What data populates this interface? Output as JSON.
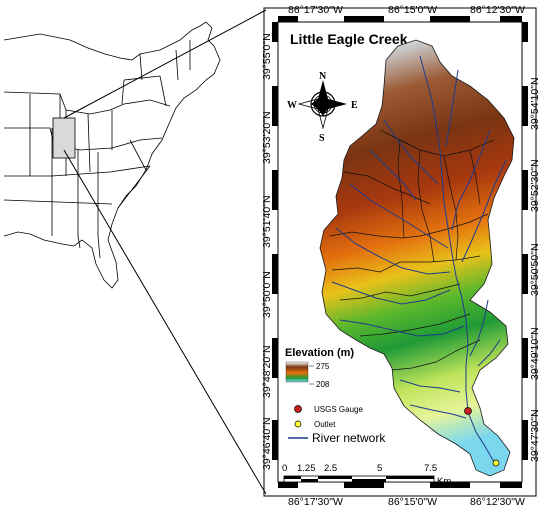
{
  "map": {
    "title": "Little Eagle Creek",
    "longitudes": [
      "86°17'30\"W",
      "86°15'0\"W",
      "86°12'30\"W"
    ],
    "latitudes_left": [
      "39°55'0\"N",
      "39°53'20\"N",
      "39°51'40\"N",
      "39°50'0\"N",
      "39°48'20\"N",
      "39°46'40\"N"
    ],
    "latitudes_right": [
      "39°54'10\"N",
      "39°52'30\"N",
      "39°50'50\"N",
      "39°49'10\"N",
      "39°47'30\"N"
    ],
    "compass": {
      "n": "N",
      "s": "S",
      "e": "E",
      "w": "W"
    },
    "scale": {
      "ticks": [
        "0",
        "1.25",
        "2.5",
        "5",
        "7.5"
      ],
      "unit": "Km"
    }
  },
  "legend": {
    "elevation_title": "Elevation (m)",
    "elev_high": "275",
    "elev_low": "208",
    "gauge_label": "USGS Gauge",
    "outlet_label": "Outlet",
    "river_label": "River network"
  },
  "colors": {
    "elev_high": "#ffffff",
    "elev_upper": "#7a3a12",
    "elev_mid": "#e37a10",
    "elev_lower": "#2aa02a",
    "elev_low": "#7ad7ee",
    "river": "#1e3c8c",
    "gauge": "#c81e1e",
    "outlet": "#ffff33",
    "highlight_state": "#d9d9d9"
  }
}
